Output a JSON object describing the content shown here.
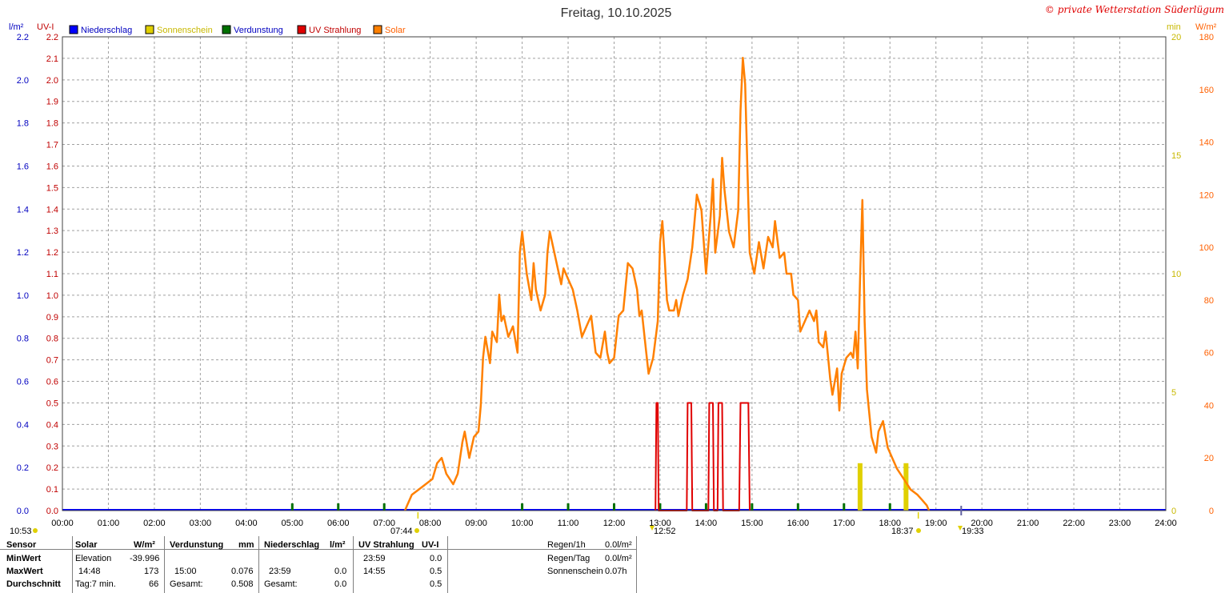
{
  "title": "Freitag, 10.10.2025",
  "watermark": "© private Wetterstation Süderlügum",
  "colors": {
    "niederschlag": "#0000ff",
    "sonnenschein": "#e0d000",
    "verdunstung": "#007000",
    "uv": "#e00000",
    "solar": "#ff8000",
    "grid": "#a0a0a0"
  },
  "axes": {
    "left1_unit": "l/m²",
    "left2_unit": "UV-I",
    "right1_unit": "min",
    "right2_unit": "W/m²",
    "left1_ticks": [
      "0.0",
      "0.2",
      "0.4",
      "0.6",
      "0.8",
      "1.0",
      "1.2",
      "1.4",
      "1.6",
      "1.8",
      "2.0",
      "2.2"
    ],
    "left2_ticks": [
      "0.0",
      "0.1",
      "0.2",
      "0.3",
      "0.4",
      "0.5",
      "0.6",
      "0.7",
      "0.8",
      "0.9",
      "1.0",
      "1.1",
      "1.2",
      "1.3",
      "1.4",
      "1.5",
      "1.6",
      "1.7",
      "1.8",
      "1.9",
      "2.0",
      "2.1",
      "2.2"
    ],
    "right1_ticks": [
      "0",
      "5",
      "10",
      "15",
      "20"
    ],
    "right2_ticks": [
      "0",
      "20",
      "40",
      "60",
      "80",
      "100",
      "120",
      "140",
      "160",
      "180"
    ],
    "x_ticks": [
      "00:00",
      "01:00",
      "02:00",
      "03:00",
      "04:00",
      "05:00",
      "06:00",
      "07:00",
      "08:00",
      "09:00",
      "10:00",
      "11:00",
      "12:00",
      "13:00",
      "14:00",
      "15:00",
      "16:00",
      "17:00",
      "18:00",
      "19:00",
      "20:00",
      "21:00",
      "22:00",
      "23:00",
      "24:00"
    ]
  },
  "legend": [
    {
      "label": "Niederschlag",
      "color": "#0000ff",
      "text_color": "#0000c0"
    },
    {
      "label": "Sonnenschein",
      "color": "#e0d000",
      "text_color": "#c8b800"
    },
    {
      "label": "Verdunstung",
      "color": "#007000",
      "text_color": "#0000c0"
    },
    {
      "label": "UV Strahlung",
      "color": "#e00000",
      "text_color": "#c00000"
    },
    {
      "label": "Solar",
      "color": "#ff8000",
      "text_color": "#ff6000"
    }
  ],
  "sun_events": {
    "current_time": "10:53",
    "sunrise": "07:44",
    "noon": "12:52",
    "sunset": "18:37",
    "dusk": "19:33"
  },
  "chart_data": {
    "type": "line",
    "x_range_hours": [
      0,
      24
    ],
    "series": [
      {
        "name": "Solar",
        "unit": "W/m²",
        "ylim": [
          0,
          180
        ],
        "points": [
          [
            7.45,
            0
          ],
          [
            7.5,
            2
          ],
          [
            7.6,
            6
          ],
          [
            7.75,
            8
          ],
          [
            7.9,
            10
          ],
          [
            8.05,
            12
          ],
          [
            8.15,
            18
          ],
          [
            8.25,
            20
          ],
          [
            8.35,
            14
          ],
          [
            8.5,
            10
          ],
          [
            8.6,
            14
          ],
          [
            8.7,
            26
          ],
          [
            8.75,
            30
          ],
          [
            8.85,
            20
          ],
          [
            8.95,
            28
          ],
          [
            9.05,
            30
          ],
          [
            9.1,
            40
          ],
          [
            9.15,
            58
          ],
          [
            9.2,
            66
          ],
          [
            9.3,
            56
          ],
          [
            9.35,
            68
          ],
          [
            9.45,
            64
          ],
          [
            9.5,
            82
          ],
          [
            9.55,
            72
          ],
          [
            9.6,
            74
          ],
          [
            9.7,
            66
          ],
          [
            9.8,
            70
          ],
          [
            9.9,
            60
          ],
          [
            9.95,
            98
          ],
          [
            10.0,
            106
          ],
          [
            10.1,
            90
          ],
          [
            10.2,
            80
          ],
          [
            10.25,
            94
          ],
          [
            10.3,
            84
          ],
          [
            10.4,
            76
          ],
          [
            10.5,
            82
          ],
          [
            10.55,
            98
          ],
          [
            10.6,
            106
          ],
          [
            10.7,
            98
          ],
          [
            10.85,
            86
          ],
          [
            10.9,
            92
          ],
          [
            11.0,
            88
          ],
          [
            11.1,
            84
          ],
          [
            11.2,
            76
          ],
          [
            11.3,
            66
          ],
          [
            11.4,
            70
          ],
          [
            11.5,
            74
          ],
          [
            11.6,
            60
          ],
          [
            11.7,
            58
          ],
          [
            11.8,
            68
          ],
          [
            11.85,
            60
          ],
          [
            11.9,
            56
          ],
          [
            12.0,
            58
          ],
          [
            12.1,
            74
          ],
          [
            12.2,
            76
          ],
          [
            12.3,
            94
          ],
          [
            12.4,
            92
          ],
          [
            12.5,
            84
          ],
          [
            12.55,
            74
          ],
          [
            12.6,
            76
          ],
          [
            12.7,
            60
          ],
          [
            12.75,
            52
          ],
          [
            12.85,
            58
          ],
          [
            12.95,
            72
          ],
          [
            13.0,
            102
          ],
          [
            13.05,
            110
          ],
          [
            13.1,
            96
          ],
          [
            13.15,
            80
          ],
          [
            13.2,
            76
          ],
          [
            13.3,
            76
          ],
          [
            13.35,
            80
          ],
          [
            13.4,
            74
          ],
          [
            13.5,
            82
          ],
          [
            13.6,
            88
          ],
          [
            13.7,
            100
          ],
          [
            13.8,
            120
          ],
          [
            13.9,
            114
          ],
          [
            14.0,
            90
          ],
          [
            14.1,
            112
          ],
          [
            14.15,
            126
          ],
          [
            14.2,
            98
          ],
          [
            14.3,
            112
          ],
          [
            14.35,
            134
          ],
          [
            14.4,
            122
          ],
          [
            14.5,
            106
          ],
          [
            14.6,
            100
          ],
          [
            14.7,
            114
          ],
          [
            14.75,
            152
          ],
          [
            14.8,
            172
          ],
          [
            14.85,
            162
          ],
          [
            14.9,
            130
          ],
          [
            14.95,
            98
          ],
          [
            15.05,
            90
          ],
          [
            15.15,
            102
          ],
          [
            15.25,
            92
          ],
          [
            15.35,
            104
          ],
          [
            15.45,
            100
          ],
          [
            15.5,
            110
          ],
          [
            15.6,
            96
          ],
          [
            15.7,
            98
          ],
          [
            15.75,
            90
          ],
          [
            15.85,
            90
          ],
          [
            15.9,
            82
          ],
          [
            16.0,
            80
          ],
          [
            16.05,
            68
          ],
          [
            16.15,
            72
          ],
          [
            16.25,
            76
          ],
          [
            16.35,
            72
          ],
          [
            16.4,
            76
          ],
          [
            16.45,
            64
          ],
          [
            16.55,
            62
          ],
          [
            16.6,
            68
          ],
          [
            16.7,
            50
          ],
          [
            16.75,
            44
          ],
          [
            16.85,
            54
          ],
          [
            16.9,
            38
          ],
          [
            16.95,
            52
          ],
          [
            17.05,
            58
          ],
          [
            17.15,
            60
          ],
          [
            17.2,
            58
          ],
          [
            17.25,
            68
          ],
          [
            17.3,
            54
          ],
          [
            17.35,
            88
          ],
          [
            17.4,
            118
          ],
          [
            17.45,
            72
          ],
          [
            17.5,
            46
          ],
          [
            17.6,
            28
          ],
          [
            17.7,
            22
          ],
          [
            17.75,
            30
          ],
          [
            17.85,
            34
          ],
          [
            17.95,
            24
          ],
          [
            18.05,
            20
          ],
          [
            18.15,
            16
          ],
          [
            18.3,
            12
          ],
          [
            18.45,
            8
          ],
          [
            18.6,
            6
          ],
          [
            18.7,
            4
          ],
          [
            18.8,
            2
          ],
          [
            18.85,
            0
          ]
        ]
      },
      {
        "name": "UV Strahlung",
        "unit": "UV-I",
        "ylim": [
          0,
          2.2
        ],
        "points": [
          [
            12.9,
            0
          ],
          [
            12.92,
            0.5
          ],
          [
            12.95,
            0.5
          ],
          [
            12.97,
            0
          ],
          [
            13.58,
            0
          ],
          [
            13.6,
            0.5
          ],
          [
            13.68,
            0.5
          ],
          [
            13.7,
            0
          ],
          [
            14.05,
            0
          ],
          [
            14.07,
            0.5
          ],
          [
            14.15,
            0.5
          ],
          [
            14.17,
            0
          ],
          [
            14.25,
            0
          ],
          [
            14.27,
            0.5
          ],
          [
            14.35,
            0.5
          ],
          [
            14.37,
            0
          ],
          [
            14.72,
            0
          ],
          [
            14.75,
            0.5
          ],
          [
            14.92,
            0.5
          ],
          [
            14.95,
            0
          ]
        ]
      }
    ],
    "sonnenschein_bars": [
      [
        17.35,
        2
      ],
      [
        18.35,
        2
      ]
    ],
    "verdunstung_marks": [
      5.0,
      6.0,
      7.0,
      10.0,
      11.0,
      12.0,
      13.0,
      14.0,
      15.0,
      16.0,
      17.0,
      18.0
    ]
  },
  "stats": {
    "headers": {
      "sensor": "Sensor",
      "solar": "Solar",
      "solar_unit": "W/m²",
      "verdunstung": "Verdunstung",
      "verdunstung_unit": "mm",
      "niederschlag": "Niederschlag",
      "niederschlag_unit": "l/m²",
      "uv": "UV Strahlung",
      "uv_unit": "UV-I"
    },
    "rows": {
      "min": "MinWert",
      "max": "MaxWert",
      "avg": "Durchschnitt"
    },
    "solar": {
      "min_label": "Elevation",
      "min_value": "-39.996",
      "max_time": "14:48",
      "max_value": "173",
      "avg_label": "Tag:7 min.",
      "avg_value": "66"
    },
    "verdunstung": {
      "max_time": "15:00",
      "max_value": "0.076",
      "avg_label": "Gesamt:",
      "avg_value": "0.508"
    },
    "niederschlag": {
      "max_time": "23:59",
      "max_value": "0.0",
      "avg_label": "Gesamt:",
      "avg_value": "0.0"
    },
    "uv": {
      "min_time": "23:59",
      "min_value": "0.0",
      "max_time": "14:55",
      "max_value": "0.5",
      "avg_value": "0.5"
    },
    "extra": {
      "regen_1h_label": "Regen/1h",
      "regen_1h_value": "0.0l/m²",
      "regen_tag_label": "Regen/Tag",
      "regen_tag_value": "0.0l/m²",
      "sonnenschein_label": "Sonnenschein",
      "sonnenschein_value": "0.07h"
    }
  }
}
